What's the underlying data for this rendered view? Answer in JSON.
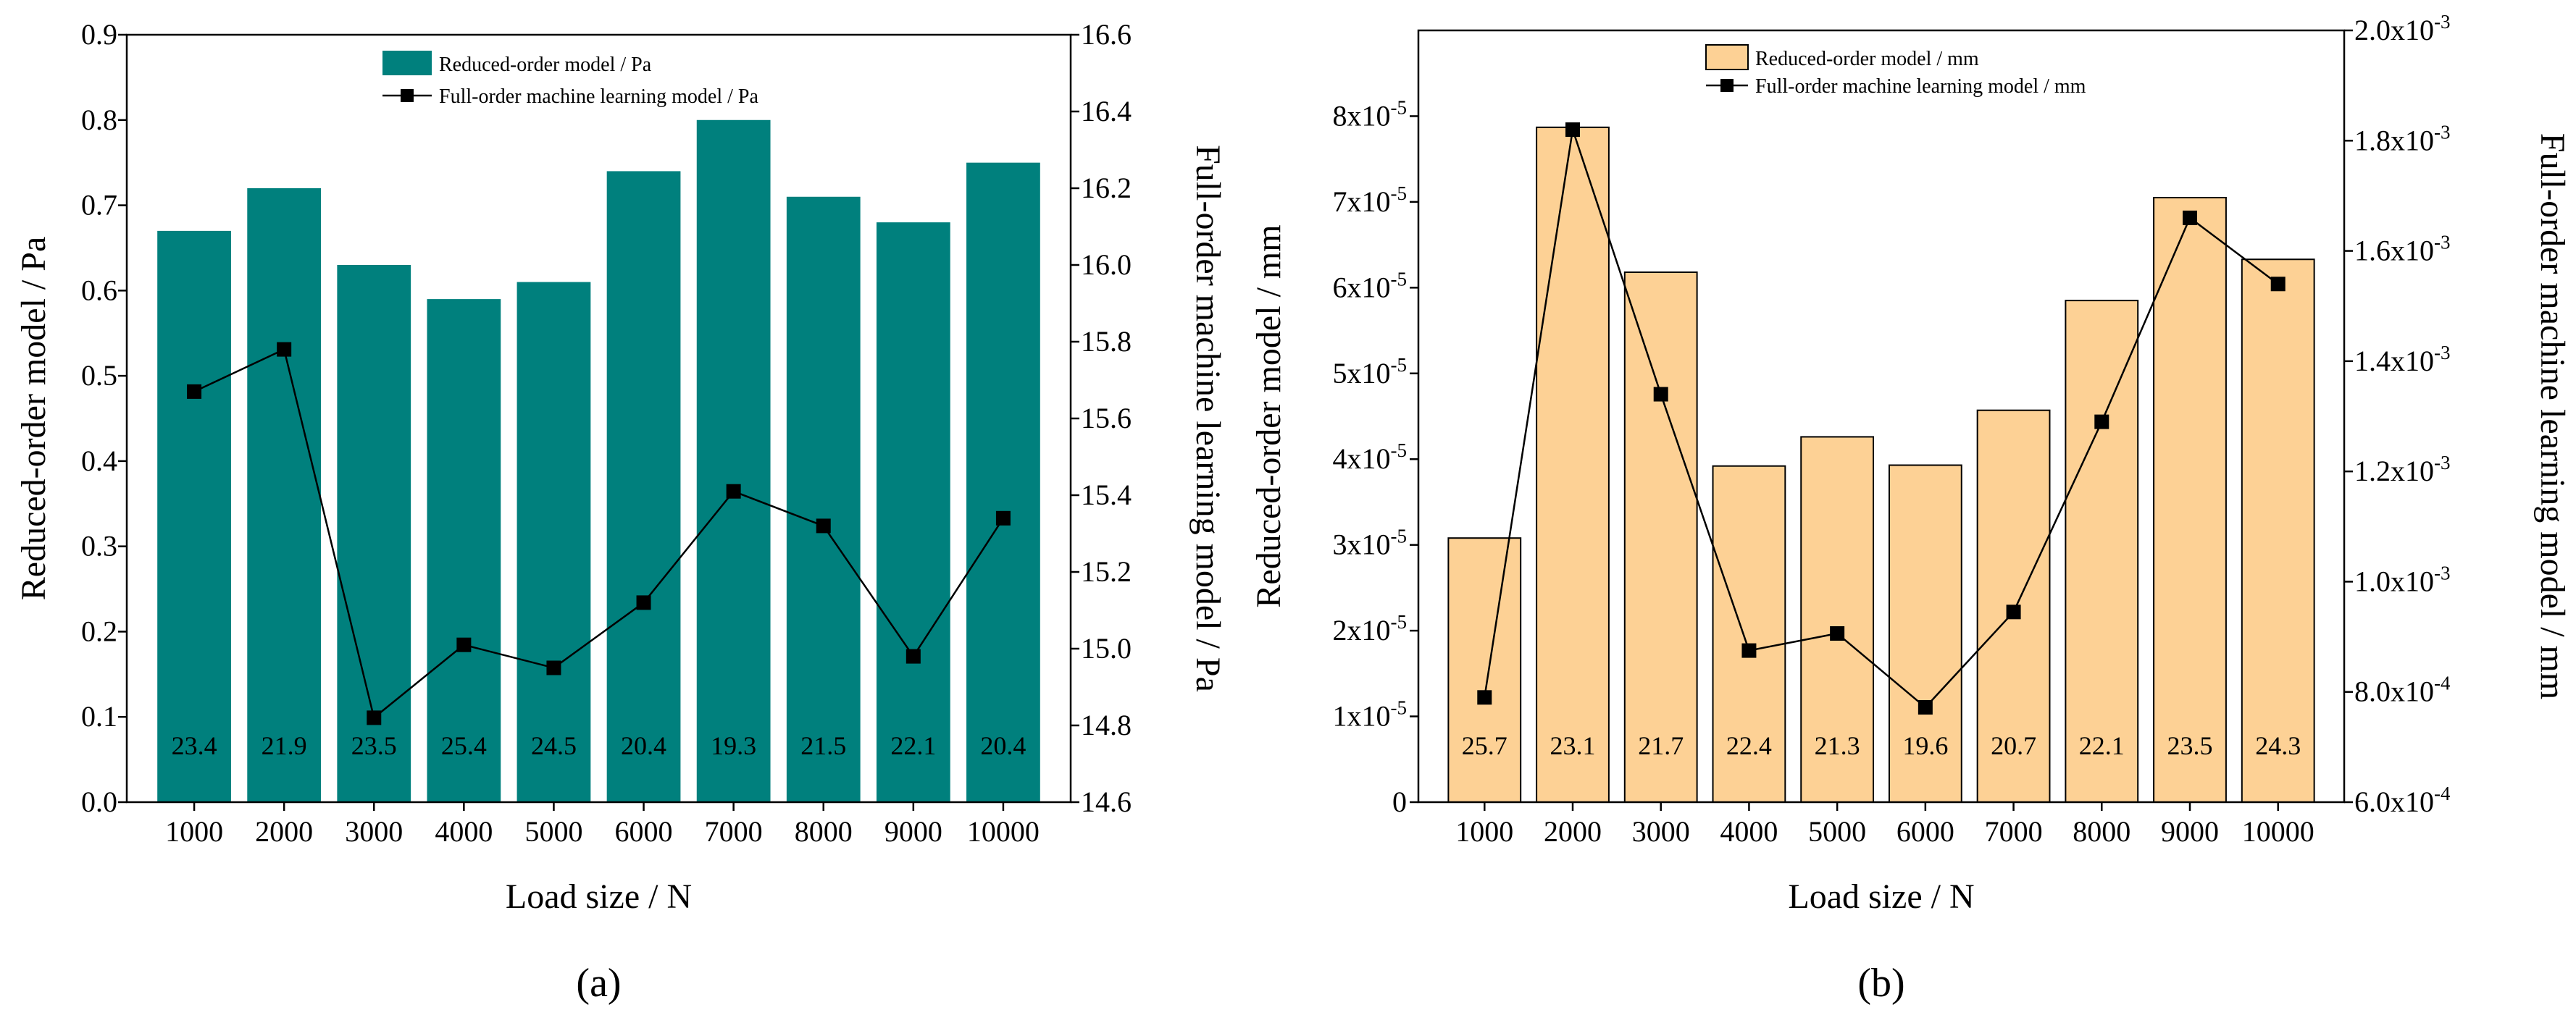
{
  "colors": {
    "panel_a_bar_fill": "#00807d",
    "panel_a_bar_stroke": "#00807d",
    "panel_b_bar_fill": "#fdd195",
    "panel_b_bar_stroke": "#000000",
    "line": "#000000",
    "marker": "#000000"
  },
  "chart_data": [
    {
      "type": "bar",
      "panel_caption": "(a)",
      "title": "",
      "xlabel": "Load size / N",
      "ylabel": "Reduced-order model / Pa",
      "y2label": "Full-order machine learning model / Pa",
      "categories": [
        "1000",
        "2000",
        "3000",
        "4000",
        "5000",
        "6000",
        "7000",
        "8000",
        "9000",
        "10000"
      ],
      "ylim": [
        0,
        0.9
      ],
      "y_ticks": [
        "0.0",
        "0.1",
        "0.2",
        "0.3",
        "0.4",
        "0.5",
        "0.6",
        "0.7",
        "0.8",
        "0.9"
      ],
      "y2lim": [
        14.6,
        16.6
      ],
      "y2_ticks": [
        "14.6",
        "14.8",
        "15.0",
        "15.2",
        "15.4",
        "15.6",
        "15.8",
        "16.0",
        "16.2",
        "16.4",
        "16.6"
      ],
      "grid": false,
      "legend_position": "top-center",
      "series": [
        {
          "name": "Reduced-order model / Pa",
          "type": "bar",
          "axis": "left",
          "values": [
            0.67,
            0.72,
            0.63,
            0.59,
            0.61,
            0.74,
            0.8,
            0.71,
            0.68,
            0.75
          ]
        },
        {
          "name": "Full-order machine learning model / Pa",
          "type": "line",
          "marker": "square",
          "axis": "right",
          "values": [
            15.67,
            15.78,
            14.82,
            15.01,
            14.95,
            15.12,
            15.41,
            15.32,
            14.98,
            15.34
          ]
        }
      ],
      "bar_labels": [
        "23.4",
        "21.9",
        "23.5",
        "25.4",
        "24.5",
        "20.4",
        "19.3",
        "21.5",
        "22.1",
        "20.4"
      ]
    },
    {
      "type": "bar",
      "panel_caption": "(b)",
      "title": "",
      "xlabel": "Load size / N",
      "ylabel": "Reduced-order model / mm",
      "y2label": "Full-order machine learning model / mm",
      "categories": [
        "1000",
        "2000",
        "3000",
        "4000",
        "5000",
        "6000",
        "7000",
        "8000",
        "9000",
        "10000"
      ],
      "ylim": [
        0,
        9e-05
      ],
      "y_ticks": [
        {
          "value": 0,
          "base": "0",
          "exp": ""
        },
        {
          "value": 1e-05,
          "base": "1x10",
          "exp": "-5"
        },
        {
          "value": 2e-05,
          "base": "2x10",
          "exp": "-5"
        },
        {
          "value": 3e-05,
          "base": "3x10",
          "exp": "-5"
        },
        {
          "value": 4e-05,
          "base": "4x10",
          "exp": "-5"
        },
        {
          "value": 5e-05,
          "base": "5x10",
          "exp": "-5"
        },
        {
          "value": 6e-05,
          "base": "6x10",
          "exp": "-5"
        },
        {
          "value": 7e-05,
          "base": "7x10",
          "exp": "-5"
        },
        {
          "value": 8e-05,
          "base": "8x10",
          "exp": "-5"
        }
      ],
      "y2lim": [
        0.0006,
        0.002
      ],
      "y2_ticks": [
        {
          "value": 0.0006,
          "base": "6.0x10",
          "exp": "-4"
        },
        {
          "value": 0.0008,
          "base": "8.0x10",
          "exp": "-4"
        },
        {
          "value": 0.001,
          "base": "1.0x10",
          "exp": "-3"
        },
        {
          "value": 0.0012,
          "base": "1.2x10",
          "exp": "-3"
        },
        {
          "value": 0.0014,
          "base": "1.4x10",
          "exp": "-3"
        },
        {
          "value": 0.0016,
          "base": "1.6x10",
          "exp": "-3"
        },
        {
          "value": 0.0018,
          "base": "1.8x10",
          "exp": "-3"
        },
        {
          "value": 0.002,
          "base": "2.0x10",
          "exp": "-3"
        }
      ],
      "grid": false,
      "legend_position": "top-center",
      "series": [
        {
          "name": "Reduced-order model / mm",
          "type": "bar",
          "axis": "left",
          "values": [
            3.08e-05,
            7.87e-05,
            6.18e-05,
            3.92e-05,
            4.26e-05,
            3.93e-05,
            4.57e-05,
            5.85e-05,
            7.05e-05,
            6.33e-05
          ]
        },
        {
          "name": "Full-order machine learning model / mm",
          "type": "line",
          "marker": "square",
          "axis": "right",
          "values": [
            0.00079,
            0.00182,
            0.00134,
            0.000875,
            0.000906,
            0.000772,
            0.000945,
            0.00129,
            0.00166,
            0.00154
          ]
        }
      ],
      "bar_labels": [
        "25.7",
        "23.1",
        "21.7",
        "22.4",
        "21.3",
        "19.6",
        "20.7",
        "22.1",
        "23.5",
        "24.3"
      ]
    }
  ]
}
